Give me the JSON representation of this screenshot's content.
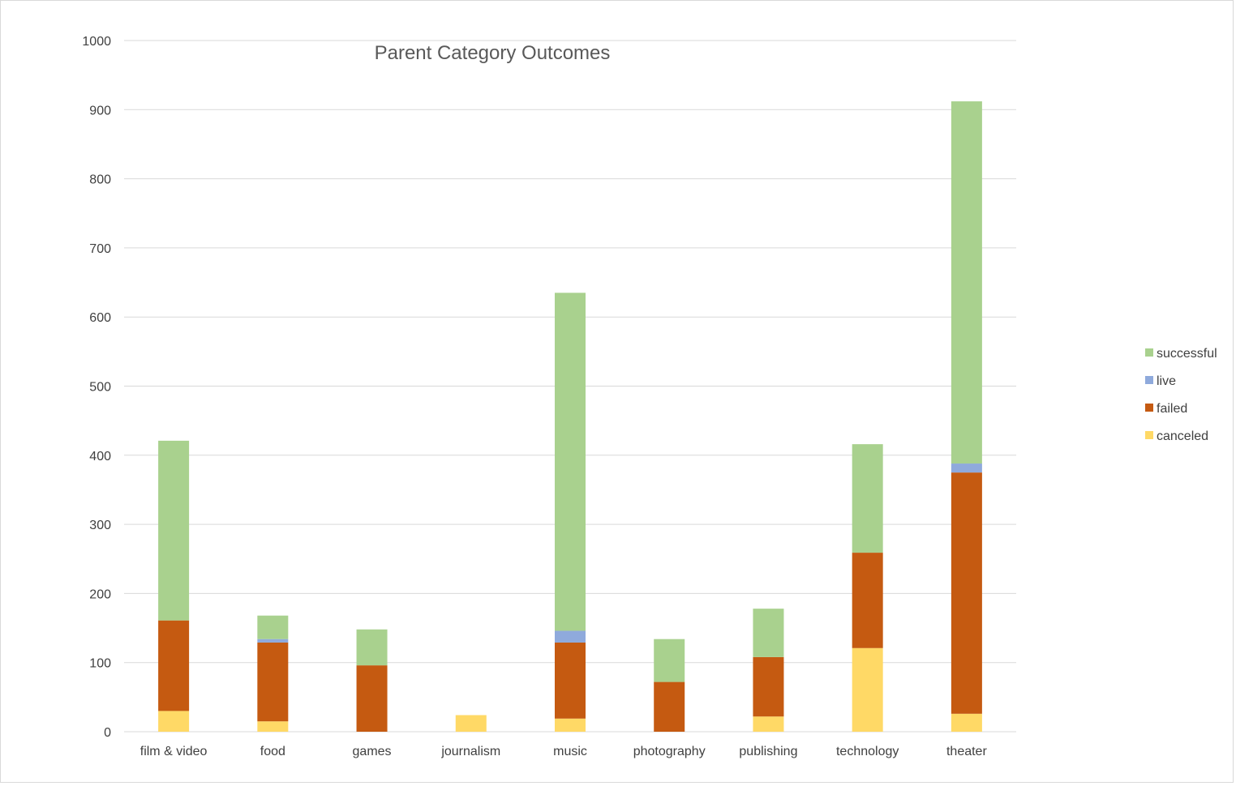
{
  "chart_data": {
    "type": "bar",
    "stacked": true,
    "title": "Parent Category Outcomes",
    "xlabel": "",
    "ylabel": "",
    "ylim": [
      0,
      1000
    ],
    "yticks": [
      0,
      100,
      200,
      300,
      400,
      500,
      600,
      700,
      800,
      900,
      1000
    ],
    "grid": true,
    "legend_position": "right",
    "categories": [
      "film & video",
      "food",
      "games",
      "journalism",
      "music",
      "photography",
      "publishing",
      "technology",
      "theater"
    ],
    "series": [
      {
        "name": "canceled",
        "color": "#ffd966",
        "values": [
          30,
          15,
          0,
          24,
          19,
          0,
          22,
          121,
          26
        ]
      },
      {
        "name": "failed",
        "color": "#c55a11",
        "values": [
          131,
          114,
          96,
          0,
          110,
          72,
          86,
          138,
          349
        ]
      },
      {
        "name": "live",
        "color": "#8faadc",
        "values": [
          0,
          5,
          0,
          0,
          17,
          0,
          0,
          0,
          13
        ]
      },
      {
        "name": "successful",
        "color": "#a9d18e",
        "values": [
          260,
          34,
          52,
          0,
          489,
          62,
          70,
          157,
          524
        ]
      }
    ],
    "legend_order": [
      "successful",
      "live",
      "failed",
      "canceled"
    ]
  }
}
